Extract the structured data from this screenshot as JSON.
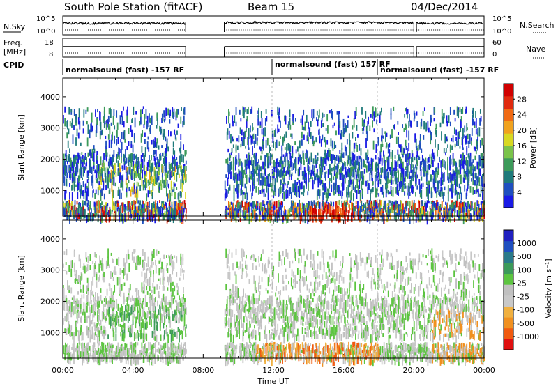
{
  "header": {
    "station": "South Pole Station (fitACF)",
    "beam": "Beam 15",
    "date": "04/Dec/2014"
  },
  "top_panels": {
    "nsky_label": "N.Sky",
    "nsearch_label": "N.Search",
    "freq_label_1": "Freq.",
    "freq_label_2": "[MHz]",
    "nave_label": "Nave",
    "cpid_label": "CPID",
    "left_ticks_noise": [
      "10^5",
      "10^0"
    ],
    "right_ticks_noise": [
      "10^5",
      "10^0"
    ],
    "left_ticks_freq": [
      "18",
      "8"
    ],
    "right_ticks_nave": [
      "60",
      "0"
    ]
  },
  "cpid_segments": [
    {
      "label": "normalsound (fast) -157 RF",
      "start_h": 0.0
    },
    {
      "label": "normalsound (fast) 157 RF",
      "start_h": 12.0
    },
    {
      "label": "normalsound (fast) -157 RF",
      "start_h": 18.0
    }
  ],
  "colors": {
    "power_scale": [
      "#1a1ae6",
      "#1f4fbf",
      "#1e7a7a",
      "#3c9a5a",
      "#7ac34a",
      "#d8d822",
      "#f0a21e",
      "#f06a14",
      "#e02a0e",
      "#d00000"
    ],
    "velocity_scale": [
      "#e01010",
      "#f05a10",
      "#f09020",
      "#f0b040",
      "#c8c8c8",
      "#c0c0c0",
      "#5cc440",
      "#3c9a5a",
      "#2a7a8a",
      "#1f4fbf",
      "#2020c0"
    ]
  },
  "chart_data": [
    {
      "type": "heatmap",
      "panel": "power",
      "ylabel": "Slant Range [km]",
      "ylim": [
        180,
        4600
      ],
      "xlim": [
        0,
        24
      ],
      "y_ticks": [
        "1000",
        "2000",
        "3000",
        "4000"
      ],
      "colorbar_label": "Power [dB]",
      "colorbar_ticks": [
        "4",
        "8",
        "12",
        "16",
        "20",
        "24",
        "28"
      ],
      "data_gap_hours": [
        [
          7.0,
          9.2
        ]
      ]
    },
    {
      "type": "heatmap",
      "panel": "velocity",
      "ylabel": "Slant Range [km]",
      "ylim": [
        180,
        4600
      ],
      "xlim": [
        0,
        24
      ],
      "y_ticks": [
        "1000",
        "2000",
        "3000",
        "4000"
      ],
      "colorbar_label": "Velocity [m s⁻¹]",
      "colorbar_ticks": [
        "-1000",
        "-500",
        "-100",
        "-25",
        "25",
        "100",
        "500",
        "1000"
      ],
      "x_ticks": [
        "00:00",
        "04:00",
        "08:00",
        "12:00",
        "16:00",
        "20:00",
        "00:00"
      ],
      "xlabel": "Time UT",
      "data_gap_hours": [
        [
          7.0,
          9.2
        ]
      ]
    }
  ]
}
